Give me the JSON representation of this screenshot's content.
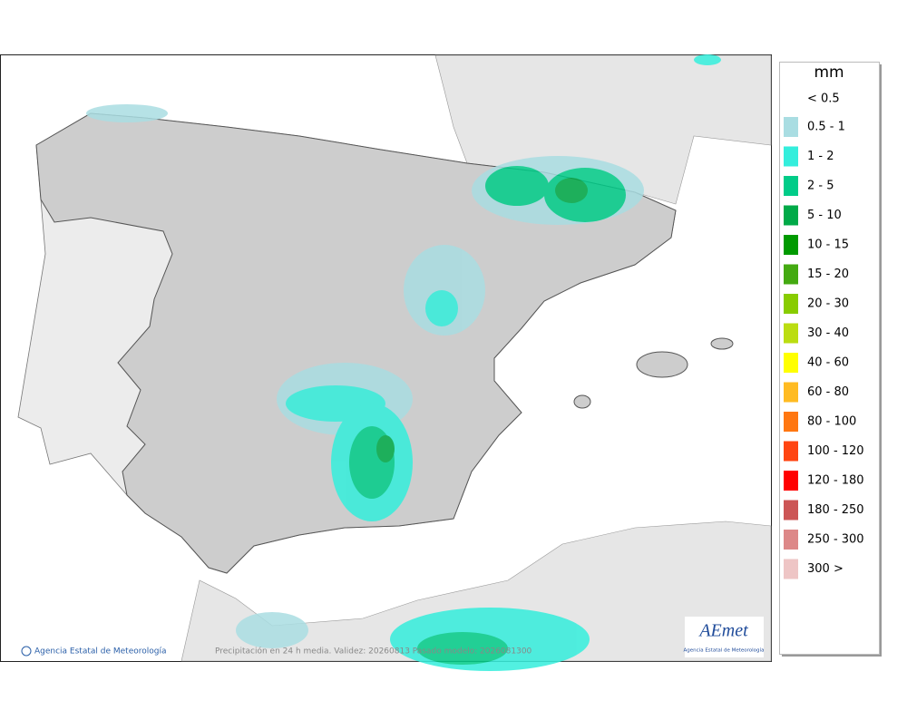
{
  "map": {
    "footer_left": "Agencia Estatal de Meteorología",
    "footer_center": "Precipitación en 24 h media. Validez: 20260813 Pasado modelo: 2026081300"
  },
  "logo": {
    "title": "AEmet",
    "subtitle": "Agencia Estatal de Meteorología"
  },
  "legend": {
    "title": "mm",
    "items": [
      {
        "label": "< 0.5",
        "color": null
      },
      {
        "label": "0.5 - 1",
        "color": "#a9dde2"
      },
      {
        "label": "1 - 2",
        "color": "#34eedc"
      },
      {
        "label": "2 - 5",
        "color": "#00cc88"
      },
      {
        "label": "5 - 10",
        "color": "#00aa48"
      },
      {
        "label": "10 - 15",
        "color": "#009a00"
      },
      {
        "label": "15 - 20",
        "color": "#44aa11"
      },
      {
        "label": "20 - 30",
        "color": "#88cc00"
      },
      {
        "label": "30 - 40",
        "color": "#bbdd11"
      },
      {
        "label": "40 - 60",
        "color": "#ffff00"
      },
      {
        "label": "60 - 80",
        "color": "#ffbb22"
      },
      {
        "label": "80 - 100",
        "color": "#ff7711"
      },
      {
        "label": "100 - 120",
        "color": "#ff4411"
      },
      {
        "label": "120 - 180",
        "color": "#ff0000"
      },
      {
        "label": "180 - 250",
        "color": "#cc5555"
      },
      {
        "label": "250 - 300",
        "color": "#dd8888"
      },
      {
        "label": "300 >",
        "color": "#eec5c5"
      }
    ]
  }
}
